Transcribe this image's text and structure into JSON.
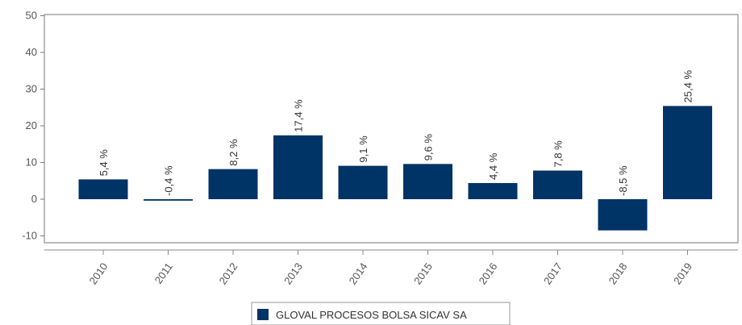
{
  "chart_data": {
    "type": "bar",
    "categories": [
      "2010",
      "2011",
      "2012",
      "2013",
      "2014",
      "2015",
      "2016",
      "2017",
      "2018",
      "2019"
    ],
    "series": [
      {
        "name": "GLOVAL PROCESOS BOLSA SICAV SA",
        "values": [
          5.4,
          -0.4,
          8.2,
          17.4,
          9.1,
          9.6,
          4.4,
          7.8,
          -8.5,
          25.4
        ],
        "labels": [
          "5,4 %",
          "-0,4 %",
          "8,2 %",
          "17,4 %",
          "9,1 %",
          "9,6 %",
          "4,4 %",
          "7,8 %",
          "-8,5 %",
          "25,4 %"
        ],
        "color": "#003366"
      }
    ],
    "y_ticks": [
      "-10",
      "0",
      "10",
      "20",
      "30",
      "40",
      "50"
    ],
    "ylim": [
      -12,
      50
    ],
    "grid": false,
    "legend": "bottom-center"
  }
}
